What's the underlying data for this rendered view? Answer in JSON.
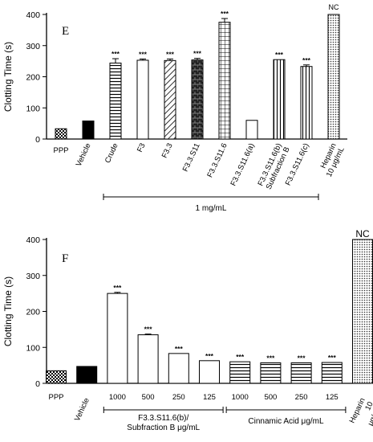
{
  "chart_data": [
    {
      "type": "bar",
      "panel_label": "E",
      "ylabel": "Clotting Time (s)",
      "ylim": [
        0,
        400
      ],
      "yticks": [
        0,
        100,
        200,
        300,
        400
      ],
      "categories": [
        "PPP",
        "Vehicle",
        "Crude",
        "F3",
        "F3.3",
        "F3.3.S11",
        "F3.3.S11.6",
        "F3.3.S11.6(a)",
        "F3.3.S11.6(b)",
        "F3.3.S11.6(c)",
        "Heparin"
      ],
      "category_label_lines": [
        [
          "PPP"
        ],
        [
          "Vehicle"
        ],
        [
          "Crude"
        ],
        [
          "F3"
        ],
        [
          "F3.3"
        ],
        [
          "F3.3.S11"
        ],
        [
          "F3.3.S11.6"
        ],
        [
          "F3.3.S11.6(a)"
        ],
        [
          "F3.3.S11.6(b)",
          "Subfraction B"
        ],
        [
          "F3.3.S11.6(c)"
        ],
        [
          "Heparin",
          "10 μg/mL"
        ]
      ],
      "values": [
        33,
        58,
        244,
        253,
        252,
        254,
        375,
        60,
        255,
        233,
        400
      ],
      "errors": [
        0,
        0,
        14,
        4,
        5,
        5,
        12,
        0,
        0,
        5,
        0
      ],
      "patterns": [
        "check",
        "solid",
        "hstripe",
        "white",
        "diag",
        "brick",
        "grid",
        "white",
        "vstripe",
        "vstripe",
        "dots"
      ],
      "annotations": [
        "",
        "",
        "***",
        "***",
        "***",
        "***",
        "***",
        "",
        "***",
        "***",
        "NC"
      ],
      "group": {
        "label": "1 mg/mL",
        "from": 2,
        "to": 9
      }
    },
    {
      "type": "bar",
      "panel_label": "F",
      "ylabel": "Clotting Time (s)",
      "ylim": [
        0,
        400
      ],
      "yticks": [
        0,
        100,
        200,
        300,
        400
      ],
      "categories": [
        "PPP",
        "Vehicle",
        "1000",
        "500",
        "250",
        "125",
        "1000",
        "500",
        "250",
        "125",
        "Heparin 10 μg/mL"
      ],
      "category_label_lines": [
        [
          "PPP"
        ],
        [
          "Vehicle"
        ],
        [
          "1000"
        ],
        [
          "500"
        ],
        [
          "250"
        ],
        [
          "125"
        ],
        [
          "1000"
        ],
        [
          "500"
        ],
        [
          "250"
        ],
        [
          "125"
        ],
        [
          "Heparin",
          "10",
          "μg/mL"
        ]
      ],
      "values": [
        35,
        47,
        250,
        135,
        83,
        63,
        60,
        57,
        57,
        58,
        400
      ],
      "errors": [
        0,
        0,
        3,
        2,
        0,
        0,
        0,
        0,
        0,
        0,
        0
      ],
      "patterns": [
        "check",
        "solid",
        "white",
        "white",
        "white",
        "white",
        "hstripe",
        "hstripe",
        "hstripe",
        "hstripe",
        "dots"
      ],
      "annotations": [
        "",
        "",
        "***",
        "***",
        "***",
        "***",
        "***",
        "***",
        "***",
        "***",
        "NC"
      ],
      "groups": [
        {
          "label_lines": [
            "F3.3.S11.6(b)/",
            "Subfraction B μg/mL"
          ],
          "from": 2,
          "to": 5
        },
        {
          "label_lines": [
            "Cinnamic Acid μg/mL"
          ],
          "from": 6,
          "to": 9
        }
      ]
    }
  ]
}
